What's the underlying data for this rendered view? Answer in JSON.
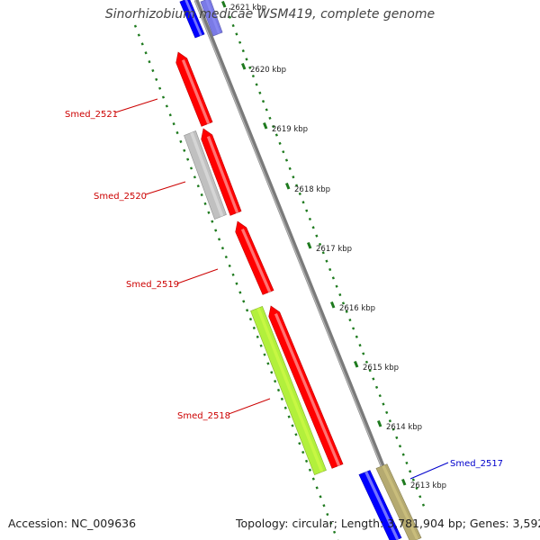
{
  "title": "Sinorhizobium medicae WSM419, complete genome",
  "footer": {
    "accession": "Accession: NC_009636",
    "summary": "Topology: circular; Length: 3,781,904 bp; Genes: 3,592"
  },
  "colors": {
    "backbone": "#7a7a7a",
    "tick": "#1e7a1e",
    "red_gene": "#ff0000",
    "grey_gene": "#c0c0c0",
    "green_gene": "#b2f03c",
    "blue_gene": "#0000ff",
    "tan_gene": "#b5aa70",
    "violet_gene": "#7a7ae6",
    "label_red": "#cc0000",
    "label_blue": "#0000cc"
  },
  "ticks": [
    {
      "label": "2621 kbp"
    },
    {
      "label": "2620 kbp"
    },
    {
      "label": "2619 kbp"
    },
    {
      "label": "2618 kbp"
    },
    {
      "label": "2617 kbp"
    },
    {
      "label": "2616 kbp"
    },
    {
      "label": "2615 kbp"
    },
    {
      "label": "2614 kbp"
    },
    {
      "label": "2613 kbp"
    }
  ],
  "gene_labels": [
    {
      "text": "Smed_2521",
      "color": "label_red"
    },
    {
      "text": "Smed_2520",
      "color": "label_red"
    },
    {
      "text": "Smed_2519",
      "color": "label_red"
    },
    {
      "text": "Smed_2518",
      "color": "label_red"
    },
    {
      "text": "Smed_2517",
      "color": "label_blue"
    }
  ]
}
